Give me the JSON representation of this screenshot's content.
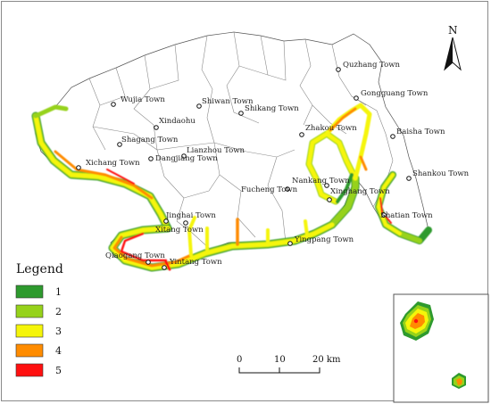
{
  "legend": {
    "title": "Legend",
    "items": [
      {
        "label": "1",
        "color": "#2e9a2e"
      },
      {
        "label": "2",
        "color": "#96d21a"
      },
      {
        "label": "3",
        "color": "#f5f50a"
      },
      {
        "label": "4",
        "color": "#ff8c00"
      },
      {
        "label": "5",
        "color": "#ff1010"
      }
    ]
  },
  "north_arrow": {
    "label": "N"
  },
  "scale_bar": {
    "ticks": [
      "0",
      "10",
      "20 km"
    ]
  },
  "towns": [
    {
      "name": "Quzhang Town"
    },
    {
      "name": "Gongguang Town"
    },
    {
      "name": "Wujia Town"
    },
    {
      "name": "Shiwan Town"
    },
    {
      "name": "Shikang Town"
    },
    {
      "name": "Xindaohu"
    },
    {
      "name": "Baisha Town"
    },
    {
      "name": "Zhakou Town"
    },
    {
      "name": "Shagang Town"
    },
    {
      "name": "Lianzhou Town"
    },
    {
      "name": "Xichang Town"
    },
    {
      "name": "Dangjiang Town"
    },
    {
      "name": "Shankou Town"
    },
    {
      "name": "Nankang Town"
    },
    {
      "name": "Fucheng Town"
    },
    {
      "name": "Xinghang Town"
    },
    {
      "name": "Shatian Town"
    },
    {
      "name": "Jinghai Town"
    },
    {
      "name": "Xitang Town"
    },
    {
      "name": "Yingpang Town"
    },
    {
      "name": "Qiaogang Town"
    },
    {
      "name": "Yintang Town"
    }
  ]
}
